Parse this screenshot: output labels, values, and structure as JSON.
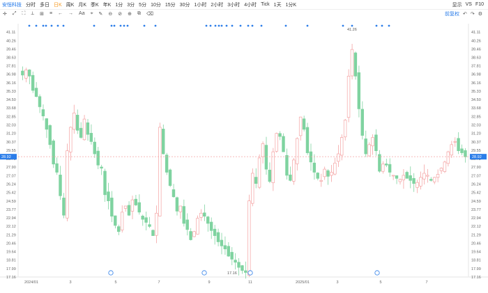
{
  "header": {
    "symbol": "安恒科技",
    "periods": [
      "分时",
      "多日",
      "日K",
      "周K",
      "月K",
      "季K",
      "年K",
      "1分",
      "3分",
      "5分",
      "10分",
      "15分",
      "30分",
      "1小时",
      "2小时",
      "3小时",
      "4小时",
      "Tick",
      "1天",
      "1分K"
    ],
    "active_period": "日K",
    "right_items": [
      "显示",
      "VS",
      "F10"
    ]
  },
  "toolbar": {
    "tools": [
      "✛",
      "⤢",
      "⛶",
      "⟂",
      "⊞",
      "≡",
      "←",
      "→",
      "Aa",
      "⌖",
      "✎",
      "⊖",
      "⊘",
      "⊕",
      "⧉",
      "⌫"
    ],
    "fq_label": "前复权"
  },
  "colors": {
    "up": "#f4a3a3",
    "down": "#7fd3a0",
    "price_line": "#f4a3a3",
    "accent": "#2b7de9"
  },
  "chart_data": {
    "type": "candlestick",
    "y_ticks": [
      "41.11",
      "40.26",
      "39.46",
      "38.63",
      "37.81",
      "36.98",
      "36.16",
      "35.33",
      "34.50",
      "33.68",
      "32.85",
      "32.03",
      "31.20",
      "30.37",
      "29.55",
      "28.72",
      "27.90",
      "27.07",
      "26.24",
      "25.42",
      "24.59",
      "23.77",
      "22.94",
      "22.12",
      "21.29",
      "20.46",
      "19.64",
      "18.81",
      "17.99",
      "17.16"
    ],
    "ylim": [
      17.16,
      41.11
    ],
    "x_labels": [
      "2024/01",
      "3",
      "5",
      "7",
      "9",
      "11",
      "2025/01",
      "3",
      "5",
      "7"
    ],
    "current_price": "28.92",
    "high_label": "41.26",
    "low_label": "17.16",
    "price_path": [
      36.9,
      37.4,
      36.8,
      35.4,
      34.8,
      33.8,
      32.9,
      31.6,
      30.1,
      28.2,
      27.4,
      25.1,
      23.2,
      29.5,
      31.8,
      33.2,
      31.5,
      30.8,
      32.6,
      31.1,
      30.4,
      29.2,
      28.1,
      27.8,
      25.2,
      24.6,
      23.1,
      22.2,
      21.6,
      23.5,
      24.1,
      23.2,
      24.7,
      24.2,
      23.5,
      22.8,
      22.5,
      22.1,
      21.2,
      23.4,
      31.8,
      29.2,
      27.4,
      26.1,
      25.0,
      23.6,
      24.1,
      22.4,
      21.8,
      20.8,
      21.6,
      22.9,
      23.4,
      23.1,
      22.4,
      21.7,
      21.2,
      20.6,
      20.2,
      19.9,
      19.2,
      18.9,
      18.6,
      18.1,
      17.8,
      17.6,
      24.6,
      27.3,
      26.3,
      28.8,
      30.2,
      27.7,
      26.5,
      29.4,
      31.2,
      30.9,
      29.4,
      27.1,
      26.6,
      28.6,
      30.7,
      32.8,
      31.6,
      29.3,
      28.4,
      27.4,
      26.8,
      26.6,
      27.7,
      27.0,
      27.4,
      28.3,
      29.2,
      30.8,
      32.5,
      36.8,
      39.4,
      36.8,
      33.6,
      31.0,
      29.2,
      30.1,
      30.8,
      29.5,
      27.5,
      28.2,
      28.1,
      27.4,
      27.1,
      26.8,
      26.7,
      27.1,
      26.8,
      26.6,
      26.3,
      26.4,
      26.9,
      27.3,
      27.1,
      26.6,
      26.9,
      27.2,
      27.8,
      28.4,
      29.4,
      30.1,
      30.4,
      29.5,
      29.3,
      28.9
    ],
    "event_markers_count": 33
  }
}
